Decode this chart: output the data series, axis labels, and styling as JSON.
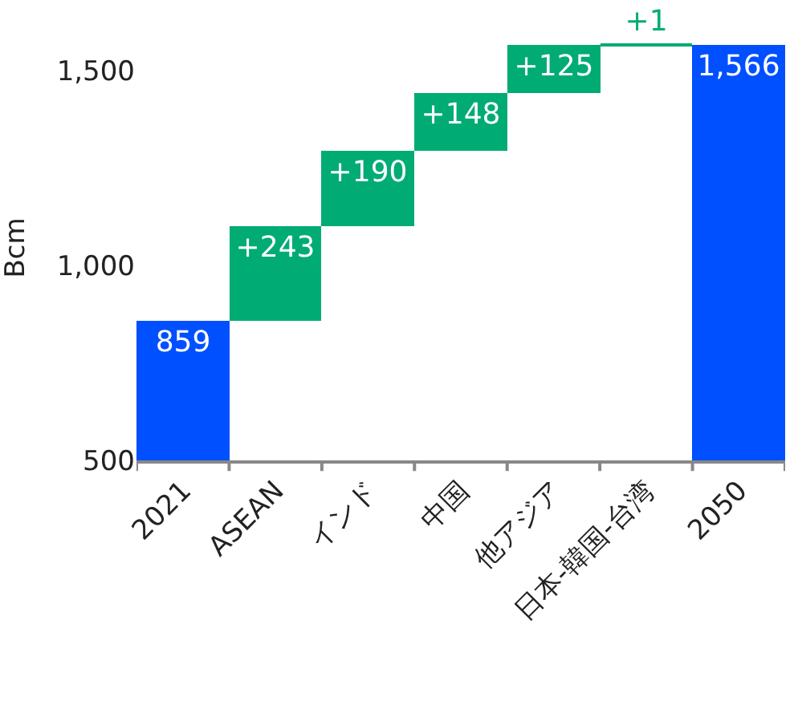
{
  "chart_data": {
    "type": "bar",
    "ylabel": "Bcm",
    "categories": [
      "2021",
      "ASEAN",
      "インド",
      "中国",
      "他アジア",
      "日本-韓国-台湾",
      "2050"
    ],
    "values": [
      859,
      243,
      190,
      148,
      125,
      1,
      1566
    ],
    "base": [
      0,
      859,
      1102,
      1292,
      1440,
      1565,
      0
    ],
    "colors": [
      "#0050ff",
      "#00ab74",
      "#00ab74",
      "#00ab74",
      "#00ab74",
      "#00ab74",
      "#0050ff"
    ],
    "value_labels": [
      "859",
      "+243",
      "+190",
      "+148",
      "+125",
      "+1",
      "1,566"
    ],
    "ylim": [
      500,
      1590
    ],
    "yticks": [
      {
        "value": 500,
        "label": "500"
      },
      {
        "value": 1000,
        "label": "1,000"
      },
      {
        "value": 1500,
        "label": "1,500"
      }
    ]
  }
}
